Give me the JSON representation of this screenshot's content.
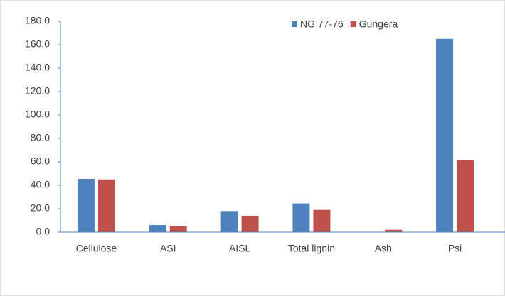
{
  "chart_data": {
    "type": "bar",
    "categories": [
      "Cellulose",
      "ASI",
      "AISL",
      "Total lignin",
      "Ash",
      "Psi"
    ],
    "series": [
      {
        "name": "NG 77-76",
        "color": "#4f81bd",
        "values": [
          45.5,
          6,
          18,
          24.5,
          0,
          165
        ]
      },
      {
        "name": "Gungera",
        "color": "#c0504d",
        "values": [
          45,
          5,
          14,
          19,
          2,
          61.5
        ]
      }
    ],
    "ylim": [
      0,
      180
    ],
    "yticks": [
      {
        "value": 0,
        "label": "0.0"
      },
      {
        "value": 20,
        "label": "20.0"
      },
      {
        "value": 40,
        "label": "40.0"
      },
      {
        "value": 60,
        "label": "60.0"
      },
      {
        "value": 80,
        "label": "80.0"
      },
      {
        "value": 100,
        "label": "100.0"
      },
      {
        "value": 120,
        "label": "120.0"
      },
      {
        "value": 140,
        "label": "140.0"
      },
      {
        "value": 160,
        "label": "160.0"
      },
      {
        "value": 180,
        "label": "180.0"
      }
    ],
    "grid": false,
    "legend": "top"
  }
}
